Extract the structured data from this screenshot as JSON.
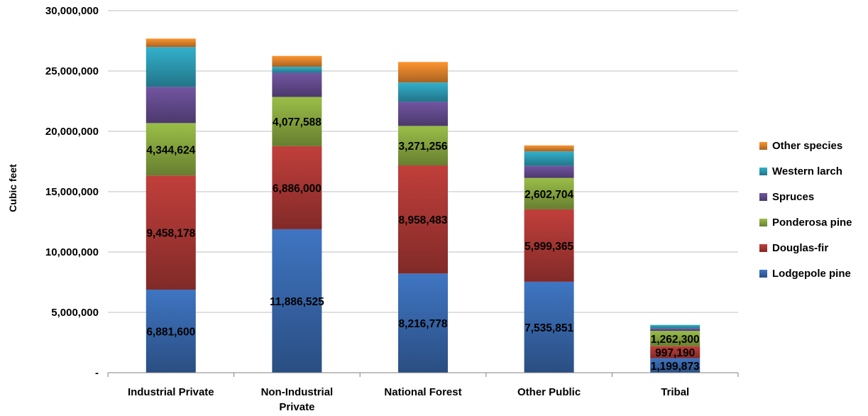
{
  "chart_data": {
    "type": "bar",
    "stacked": true,
    "title": "",
    "xlabel": "",
    "ylabel": "Cubic feet",
    "ylim": [
      0,
      30000000
    ],
    "yticks": [
      {
        "value": 0,
        "label": "-"
      },
      {
        "value": 5000000,
        "label": "5,000,000"
      },
      {
        "value": 10000000,
        "label": "10,000,000"
      },
      {
        "value": 15000000,
        "label": "15,000,000"
      },
      {
        "value": 20000000,
        "label": "20,000,000"
      },
      {
        "value": 25000000,
        "label": "25,000,000"
      },
      {
        "value": 30000000,
        "label": "30,000,000"
      }
    ],
    "grid": true,
    "legend_position": "right",
    "categories": [
      [
        "Industrial Private"
      ],
      [
        "Non-Industrial",
        "Private"
      ],
      [
        "National Forest"
      ],
      [
        "Other Public"
      ],
      [
        "Tribal"
      ]
    ],
    "series": [
      {
        "name": "Lodgepole pine",
        "color": "#3a6cb4",
        "values": [
          6881600,
          11886525,
          8216778,
          7535851,
          1199873
        ],
        "labels": [
          "6,881,600",
          "11,886,525",
          "8,216,778",
          "7,535,851",
          "1,199,873"
        ]
      },
      {
        "name": "Douglas-fir",
        "color": "#b33a37",
        "values": [
          9458178,
          6886000,
          8958483,
          5999365,
          997190
        ],
        "labels": [
          "9,458,178",
          "6,886,000",
          "8,958,483",
          "5,999,365",
          "997,190"
        ]
      },
      {
        "name": "Ponderosa pine",
        "color": "#8fb043",
        "values": [
          4344624,
          4077588,
          3271256,
          2602704,
          1262300
        ],
        "labels": [
          "4,344,624",
          "4,077,588",
          "3,271,256",
          "2,602,704",
          "1,262,300"
        ]
      },
      {
        "name": "Spruces",
        "color": "#6a4f96",
        "values": [
          3000000,
          2000000,
          2000000,
          1000000,
          200000
        ],
        "labels": [
          "",
          "",
          "",
          "",
          ""
        ]
      },
      {
        "name": "Western larch",
        "color": "#2fa3bd",
        "values": [
          3300000,
          500000,
          1600000,
          1200000,
          300000
        ],
        "labels": [
          "",
          "",
          "",
          "",
          ""
        ]
      },
      {
        "name": "Other species",
        "color": "#ea8a2c",
        "values": [
          700000,
          900000,
          1700000,
          500000,
          0
        ],
        "labels": [
          "",
          "",
          "",
          "",
          ""
        ]
      }
    ]
  }
}
